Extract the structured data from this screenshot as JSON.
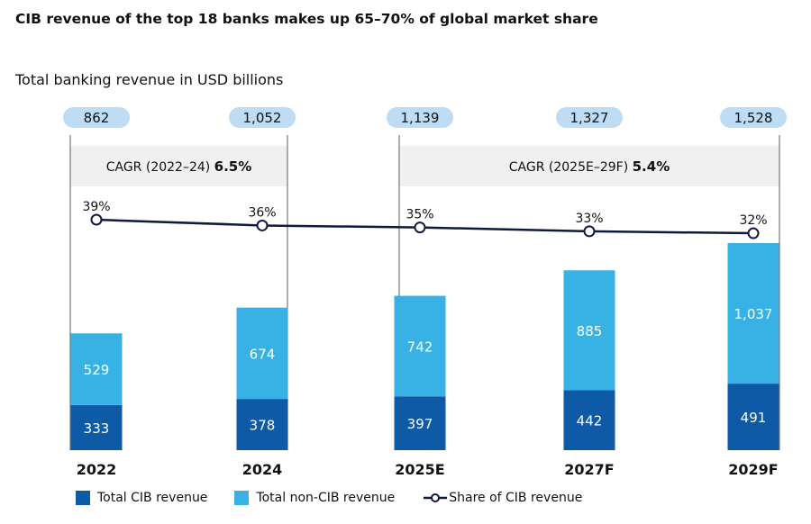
{
  "title": "CIB revenue of the top 18 banks makes up 65–70% of global market share",
  "subtitle": "Total banking revenue in USD billions",
  "colors": {
    "cib": "#0f5aa6",
    "non_cib": "#38b2e4",
    "line": "#0f1a3c",
    "pill": "#bedcf3",
    "band": "#f0f0f0"
  },
  "chart_data": {
    "type": "bar",
    "stacked": true,
    "categories": [
      "2022",
      "2024",
      "2025E",
      "2027F",
      "2029F"
    ],
    "totals": [
      "862",
      "1,052",
      "1,139",
      "1,327",
      "1,528"
    ],
    "series": [
      {
        "name": "Total CIB revenue",
        "values": [
          333,
          378,
          397,
          442,
          491
        ],
        "labels": [
          "333",
          "378",
          "397",
          "442",
          "491"
        ]
      },
      {
        "name": "Total non-CIB revenue",
        "values": [
          529,
          674,
          742,
          885,
          1037
        ],
        "labels": [
          "529",
          "674",
          "742",
          "885",
          "1,037"
        ]
      }
    ],
    "line": {
      "name": "Share of CIB revenue",
      "values": [
        39,
        36,
        35,
        33,
        32
      ],
      "labels": [
        "39%",
        "36%",
        "35%",
        "33%",
        "32%"
      ]
    },
    "cagr": [
      {
        "label": "CAGR (2022–24) ",
        "value": "6.5%"
      },
      {
        "label": "CAGR (2025E–29F) ",
        "value": "5.4%"
      }
    ],
    "legend_placement": "bottom"
  }
}
